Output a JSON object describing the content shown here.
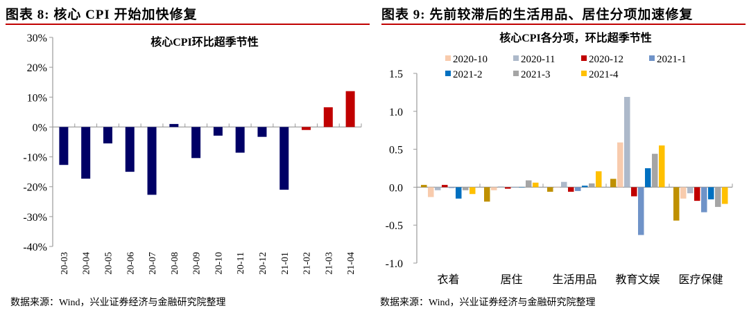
{
  "left": {
    "figure_title": "图表 8: 核心 CPI 开始加快修复",
    "source": "数据来源：Wind，兴业证券经济与金融研究院整理"
  },
  "right": {
    "figure_title": "图表 9: 先前较滞后的生活用品、居住分项加速修复",
    "source": "数据来源：Wind，兴业证券经济与金融研究院整理"
  },
  "chart_data": [
    {
      "type": "bar",
      "title": "核心CPI环比超季节性",
      "categories": [
        "20-03",
        "20-04",
        "20-05",
        "20-06",
        "20-07",
        "20-08",
        "20-09",
        "20-10",
        "20-11",
        "20-12",
        "21-01",
        "21-02",
        "21-03",
        "21-04"
      ],
      "values": [
        -12.7,
        -17.3,
        -5.5,
        -15.0,
        -22.7,
        1.0,
        -10.4,
        -2.9,
        -8.6,
        -3.3,
        -21.0,
        -1.0,
        6.6,
        12.0
      ],
      "bar_colors": [
        "#000066",
        "#000066",
        "#000066",
        "#000066",
        "#000066",
        "#000066",
        "#000066",
        "#000066",
        "#000066",
        "#000066",
        "#000066",
        "#c00000",
        "#c00000",
        "#c00000"
      ],
      "ylim": [
        -40,
        30
      ],
      "yticks": [
        "-40%",
        "-30%",
        "-20%",
        "-10%",
        "0%",
        "10%",
        "20%",
        "30%"
      ],
      "grid": false
    },
    {
      "type": "bar",
      "title": "核心CPI各分项，环比超季节性",
      "categories": [
        "衣着",
        "居住",
        "生活用品",
        "教育文娱",
        "医疗保健"
      ],
      "series": [
        {
          "name": "",
          "color": "#bf9000",
          "values": [
            0.03,
            -0.19,
            -0.06,
            0.11,
            -0.44
          ]
        },
        {
          "name": "2020-10",
          "color": "#f8cbad",
          "values": [
            -0.13,
            -0.04,
            0.0,
            0.59,
            -0.15
          ]
        },
        {
          "name": "2020-11",
          "color": "#adb9ca",
          "values": [
            -0.04,
            0.01,
            0.07,
            1.19,
            -0.08
          ]
        },
        {
          "name": "2020-12",
          "color": "#c00000",
          "values": [
            0.03,
            -0.02,
            -0.06,
            -0.12,
            -0.18
          ]
        },
        {
          "name": "2021-1",
          "color": "#6f93c8",
          "values": [
            -0.01,
            0.0,
            -0.05,
            -0.63,
            -0.33
          ]
        },
        {
          "name": "2021-2",
          "color": "#0070c0",
          "values": [
            -0.15,
            0.0,
            0.02,
            0.25,
            -0.16
          ]
        },
        {
          "name": "2021-3",
          "color": "#a5a5a5",
          "values": [
            -0.04,
            0.09,
            0.05,
            0.44,
            -0.26
          ]
        },
        {
          "name": "2021-4",
          "color": "#ffc000",
          "values": [
            -0.09,
            0.06,
            0.21,
            0.55,
            -0.22
          ]
        }
      ],
      "ylim": [
        -1.0,
        1.5
      ],
      "yticks": [
        "-1.0",
        "-0.5",
        "0.0",
        "0.5",
        "1.0",
        "1.5"
      ],
      "legend": "top",
      "grid": false
    }
  ]
}
